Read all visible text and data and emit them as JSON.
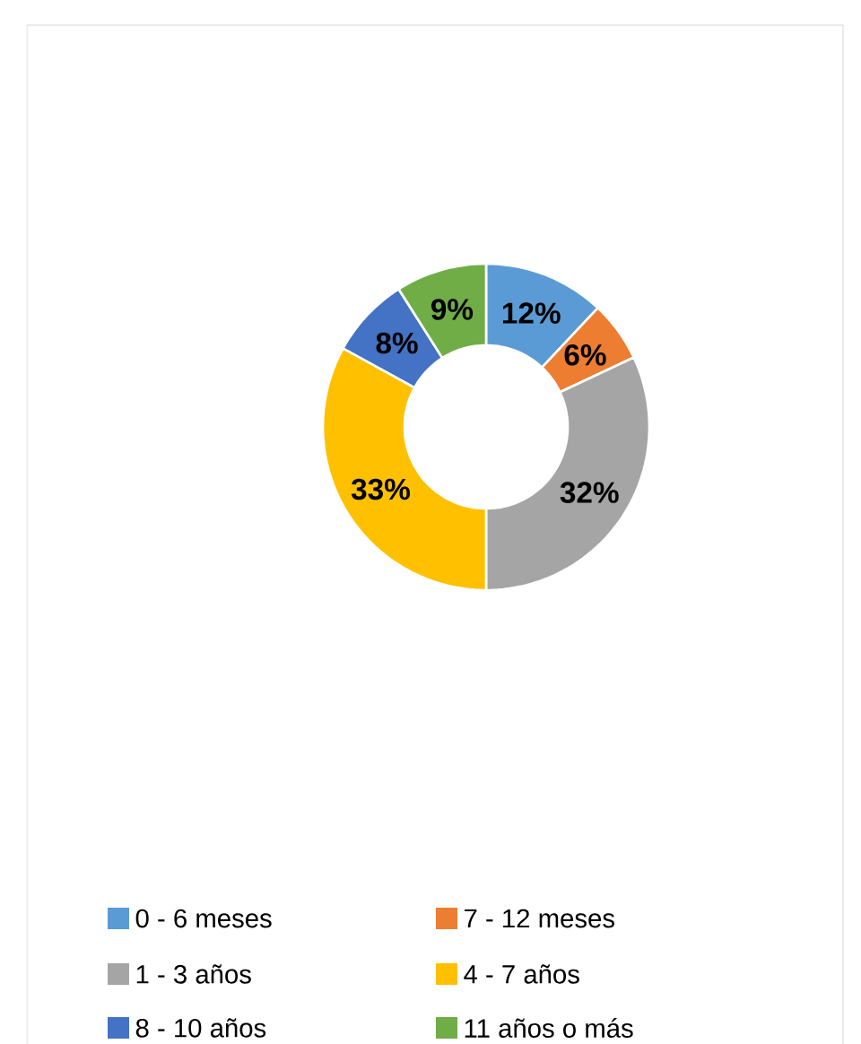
{
  "chart_data": {
    "type": "donut",
    "categories": [
      "0 - 6 meses",
      "7 - 12 meses",
      "1 - 3 años",
      "4 - 7 años",
      "8 - 10 años",
      "11 años o más"
    ],
    "values": [
      12,
      6,
      32,
      33,
      8,
      9
    ],
    "value_labels": [
      "12%",
      "6%",
      "32%",
      "33%",
      "8%",
      "9%"
    ],
    "colors": [
      "#5b9bd5",
      "#ed7d31",
      "#a5a5a5",
      "#ffc000",
      "#4472c4",
      "#70ad47"
    ],
    "legend": "bottom"
  }
}
